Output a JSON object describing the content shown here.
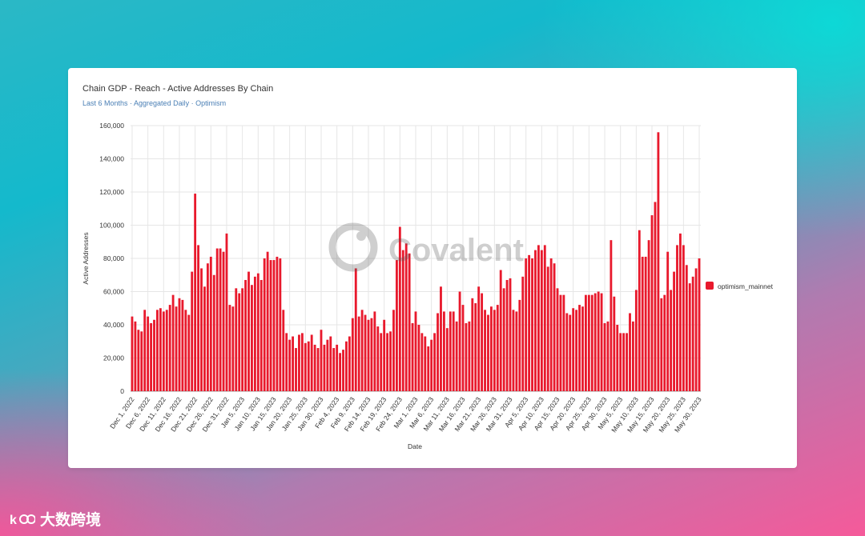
{
  "card": {
    "title": "Chain GDP - Reach - Active Addresses By Chain",
    "subtitle": "Last 6 Months · Aggregated Daily · Optimism"
  },
  "watermark": {
    "text": "Covalent"
  },
  "brand": {
    "text": "大数跨境"
  },
  "colors": {
    "bar": "#e8192c",
    "grid": "#e6e6e6",
    "axis_text": "#333333"
  },
  "chart_data": {
    "type": "bar",
    "xlabel": "Date",
    "ylabel": "Active Addresses",
    "ylim": [
      0,
      160000
    ],
    "yticks": [
      "0",
      "20,000",
      "40,000",
      "60,000",
      "80,000",
      "100,000",
      "120,000",
      "140,000",
      "160,000"
    ],
    "grid": true,
    "legend_position": "right",
    "x_start": "Dec 1, 2022",
    "x_tick_labels": [
      "Dec 1, 2022",
      "Dec 6, 2022",
      "Dec 11, 2022",
      "Dec 16, 2022",
      "Dec 21, 2022",
      "Dec 26, 2022",
      "Dec 31, 2022",
      "Jan 5, 2023",
      "Jan 10, 2023",
      "Jan 15, 2023",
      "Jan 20, 2023",
      "Jan 25, 2023",
      "Jan 30, 2023",
      "Feb 4, 2023",
      "Feb 9, 2023",
      "Feb 14, 2023",
      "Feb 19, 2023",
      "Feb 24, 2023",
      "Mar 1, 2023",
      "Mar 6, 2023",
      "Mar 11, 2023",
      "Mar 16, 2023",
      "Mar 21, 2023",
      "Mar 26, 2023",
      "Mar 31, 2023",
      "Apr 5, 2023",
      "Apr 10, 2023",
      "Apr 15, 2023",
      "Apr 20, 2023",
      "Apr 25, 2023",
      "Apr 30, 2023",
      "May 5, 2023",
      "May 10, 2023",
      "May 15, 2023",
      "May 20, 2023",
      "May 25, 2023",
      "May 30, 2023"
    ],
    "series": [
      {
        "name": "optimism_mainnet",
        "values": [
          45000,
          42000,
          37000,
          36000,
          49000,
          45000,
          41000,
          43000,
          49000,
          50000,
          48000,
          49000,
          52000,
          58000,
          51000,
          56000,
          55000,
          49000,
          46000,
          72000,
          119000,
          88000,
          74000,
          63000,
          77000,
          81000,
          70000,
          86000,
          86000,
          84000,
          95000,
          52000,
          51000,
          62000,
          59000,
          62000,
          67000,
          72000,
          64000,
          69000,
          71000,
          67000,
          80000,
          84000,
          79000,
          79000,
          81000,
          80000,
          49000,
          35000,
          31000,
          33000,
          26000,
          34000,
          35000,
          29000,
          30000,
          34000,
          28000,
          26000,
          37000,
          28000,
          31000,
          33000,
          26000,
          28000,
          23000,
          25000,
          30000,
          33000,
          44000,
          74000,
          45000,
          49000,
          46000,
          43000,
          44000,
          48000,
          39000,
          35000,
          43000,
          35000,
          36000,
          49000,
          79000,
          99000,
          85000,
          89000,
          83000,
          41000,
          48000,
          40000,
          35000,
          33000,
          27000,
          31000,
          35000,
          47000,
          63000,
          48000,
          38000,
          48000,
          48000,
          42000,
          60000,
          52000,
          41000,
          42000,
          56000,
          53000,
          63000,
          59000,
          49000,
          46000,
          51000,
          49000,
          52000,
          73000,
          62000,
          67000,
          68000,
          49000,
          48000,
          55000,
          69000,
          80000,
          82000,
          80000,
          85000,
          88000,
          85000,
          88000,
          75000,
          80000,
          77000,
          62000,
          58000,
          58000,
          47000,
          46000,
          50000,
          49000,
          52000,
          51000,
          58000,
          58000,
          58000,
          59000,
          60000,
          59000,
          41000,
          42000,
          91000,
          57000,
          40000,
          35000,
          35000,
          35000,
          47000,
          42000,
          61000,
          97000,
          81000,
          81000,
          91000,
          106000,
          114000,
          156000,
          56000,
          58000,
          84000,
          61000,
          72000,
          88000,
          95000,
          88000,
          76000,
          65000,
          69000,
          74000,
          80000
        ]
      }
    ]
  }
}
